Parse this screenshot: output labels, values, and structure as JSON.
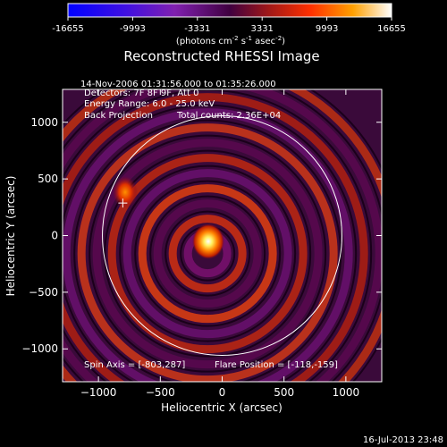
{
  "chart_data": {
    "type": "heatmap",
    "title": "Reconstructed RHESSI Image",
    "colorbar": {
      "ticks": [
        "-16655",
        "-9993",
        "-3331",
        "3331",
        "9993",
        "16655"
      ],
      "range": [
        -16655,
        16655
      ],
      "unit_prefix": "(photons cm",
      "unit_sup1": "-2",
      "unit_mid": " s",
      "unit_sup2": "-1",
      "unit_mid2": " asec",
      "unit_sup3": "-2",
      "unit_suffix": ")"
    },
    "annotations": {
      "time_range": "14-Nov-2006 01:31:56.000 to 01:35:26.000",
      "detectors": "Detectors: 7F 8F 9F, Att 0",
      "energy": "Energy Range: 6.0 - 25.0 keV",
      "method": "Back Projection",
      "counts": "Total counts: 2.36E+04",
      "spin_axis": "Spin Axis = [-803,287]",
      "flare_position": "Flare Position = [-118,-159]"
    },
    "xlabel": "Heliocentric X (arcsec)",
    "ylabel": "Heliocentric Y (arcsec)",
    "xlim": [
      -1290,
      1290
    ],
    "ylim": [
      -1290,
      1290
    ],
    "x_ticks": [
      -1000,
      -500,
      0,
      500,
      1000
    ],
    "x_tick_labels": [
      "−1000",
      "−500",
      "0",
      "500",
      "1000"
    ],
    "y_ticks": [
      1000,
      500,
      0,
      -500,
      -1000
    ],
    "y_tick_labels": [
      "1000",
      "500",
      "0",
      "−500",
      "−1000"
    ],
    "flare_position": [
      -118,
      -159
    ],
    "spin_axis": [
      -803,
      287
    ],
    "solar_radius_arcsec": 968,
    "timestamp": "16-Jul-2013 23:48",
    "colors": {
      "low": "#0000ff",
      "mid_low": "#8000a0",
      "mid": "#300030",
      "mid_high": "#d02000",
      "high": "#ffffff"
    }
  }
}
